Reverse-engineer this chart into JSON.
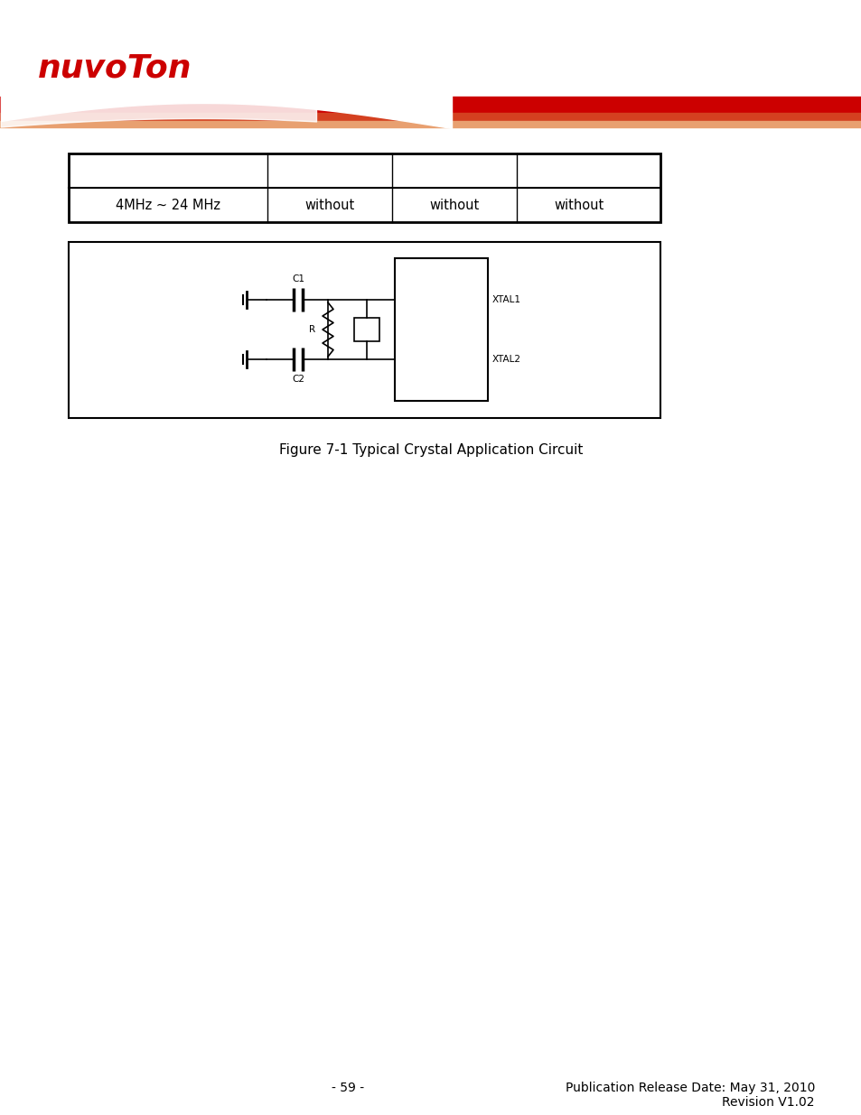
{
  "page_bg": "#ffffff",
  "logo_text": "nuvoTon",
  "logo_color": "#cc0000",
  "header_red": "#cc0000",
  "header_orange": "#d44020",
  "header_peach": "#e8a070",
  "table_row2_col1": "4MHz ~ 24 MHz",
  "table_row2_col2": "without",
  "table_row2_col3": "without",
  "table_row2_col4": "without",
  "figure_caption": "Figure 7-1 Typical Crystal Application Circuit",
  "footer_left": "- 59 -",
  "footer_right1": "Publication Release Date: May 31, 2010",
  "footer_right2": "Revision V1.02"
}
